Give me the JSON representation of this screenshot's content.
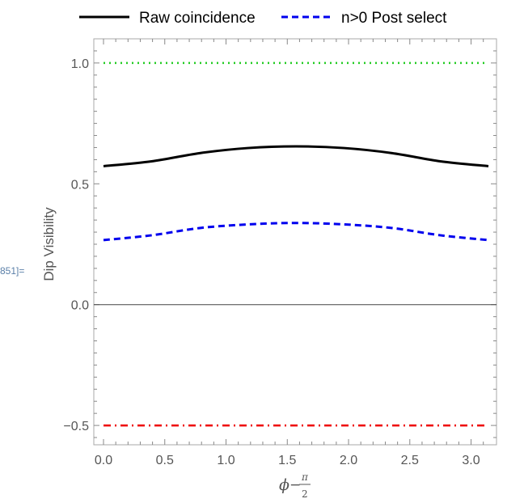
{
  "cell_label": "851]=",
  "chart_data": {
    "type": "line",
    "xlabel": {
      "phi": "ϕ",
      "minus": "−",
      "num": "π",
      "den": "2"
    },
    "ylabel": "Dip Visibility",
    "xlim": [
      0,
      3.1416
    ],
    "ylim": [
      -0.58,
      1.1
    ],
    "xticks": [
      0.0,
      0.5,
      1.0,
      1.5,
      2.0,
      2.5,
      3.0
    ],
    "xtick_labels": [
      "0.0",
      "0.5",
      "1.0",
      "1.5",
      "2.0",
      "2.5",
      "3.0"
    ],
    "yticks": [
      -0.5,
      0.0,
      0.5,
      1.0
    ],
    "ytick_labels": [
      "−0.5",
      "0.0",
      "0.5",
      "1.0"
    ],
    "legend_position": "top",
    "series": [
      {
        "name": "Raw coincidence",
        "color": "#000000",
        "style": "solid",
        "x": [
          0,
          0.3927,
          0.7854,
          1.1781,
          1.5708,
          1.9635,
          2.3562,
          2.7489,
          3.1416
        ],
        "y": [
          0.573,
          0.593,
          0.627,
          0.648,
          0.655,
          0.648,
          0.627,
          0.593,
          0.573
        ]
      },
      {
        "name": "n>0 Post select",
        "color": "#0000ee",
        "style": "dashed",
        "x": [
          0,
          0.3927,
          0.7854,
          1.1781,
          1.5708,
          1.9635,
          2.3562,
          2.7489,
          3.1416
        ],
        "y": [
          0.267,
          0.287,
          0.317,
          0.332,
          0.338,
          0.332,
          0.317,
          0.287,
          0.267
        ]
      },
      {
        "color": "#22cc22",
        "style": "dotted",
        "x": [
          0,
          3.1416
        ],
        "y": [
          1.0,
          1.0
        ]
      },
      {
        "color": "#ee0000",
        "style": "dashdot",
        "x": [
          0,
          3.1416
        ],
        "y": [
          -0.5,
          -0.5
        ]
      }
    ]
  }
}
